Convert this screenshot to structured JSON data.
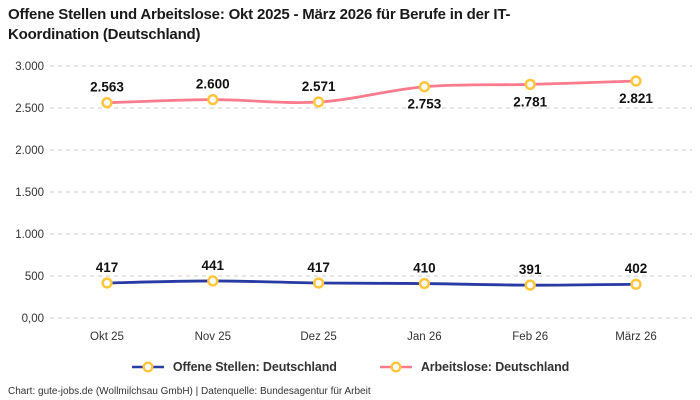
{
  "chart_data": {
    "type": "line",
    "title": "Offene Stellen und Arbeitslose: Okt 2025 - März 2026 für Berufe in der IT-Koordination (Deutschland)",
    "categories": [
      "Okt 25",
      "Nov 25",
      "Dez 25",
      "Jan 26",
      "Feb 26",
      "März 26"
    ],
    "series": [
      {
        "name": "Offene Stellen: Deutschland",
        "color": "#283AA3",
        "values": [
          417,
          441,
          417,
          410,
          391,
          402
        ],
        "labels": [
          "417",
          "441",
          "417",
          "410",
          "391",
          "402"
        ],
        "label_position": [
          "above",
          "above",
          "above",
          "above",
          "above",
          "above"
        ]
      },
      {
        "name": "Arbeitslose: Deutschland",
        "color": "#F97B8C",
        "values": [
          2563,
          2600,
          2571,
          2753,
          2781,
          2821
        ],
        "labels": [
          "2.563",
          "2.600",
          "2.571",
          "2.753",
          "2.781",
          "2.821"
        ],
        "label_position": [
          "above",
          "above",
          "above",
          "below",
          "below",
          "below"
        ]
      }
    ],
    "y_ticks": [
      {
        "value": 0,
        "label": "0,00"
      },
      {
        "value": 500,
        "label": "500"
      },
      {
        "value": 1000,
        "label": "1.000"
      },
      {
        "value": 1500,
        "label": "1.500"
      },
      {
        "value": 2000,
        "label": "2.000"
      },
      {
        "value": 2500,
        "label": "2.500"
      },
      {
        "value": 3000,
        "label": "3.000"
      }
    ],
    "ylim": [
      0,
      3000
    ],
    "grid": "horizontal-dashed",
    "grid_color": "#cccccc",
    "tick_label_color": "#333333",
    "data_label_color": "#111111",
    "marker": {
      "fill": "#ffffff",
      "stroke": "#FFC53D"
    },
    "legend_position": "bottom"
  },
  "footer": {
    "credit": "Chart: gute-jobs.de (Wollmilchsau GmbH) | Datenquelle: Bundesagentur für Arbeit"
  }
}
